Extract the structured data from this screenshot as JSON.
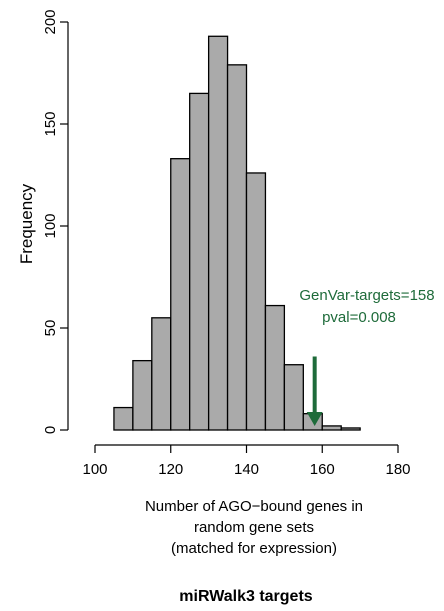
{
  "chart_data": {
    "type": "bar",
    "title": "miRWalk3 targets",
    "xlabel_lines": [
      "Number of AGO−bound genes in",
      "random gene sets",
      "(matched for expression)"
    ],
    "ylabel": "Frequency",
    "xlim": [
      100,
      180
    ],
    "ylim": [
      0,
      200
    ],
    "xticks": [
      "100",
      "120",
      "140",
      "160",
      "180"
    ],
    "yticks": [
      "0",
      "50",
      "100",
      "150",
      "200"
    ],
    "bin_width": 5,
    "bin_starts": [
      105,
      110,
      115,
      120,
      125,
      130,
      135,
      140,
      145,
      150,
      155,
      160,
      165
    ],
    "values": [
      11,
      34,
      55,
      133,
      165,
      193,
      179,
      126,
      61,
      32,
      8,
      2,
      1
    ],
    "bar_color": "#aaaaaa",
    "annotation": {
      "label_lines": [
        "GenVar-targets=158",
        "pval=0.008"
      ],
      "x": 158,
      "y_from": 36,
      "y_to": 1,
      "color": "#1e6b3a"
    }
  }
}
